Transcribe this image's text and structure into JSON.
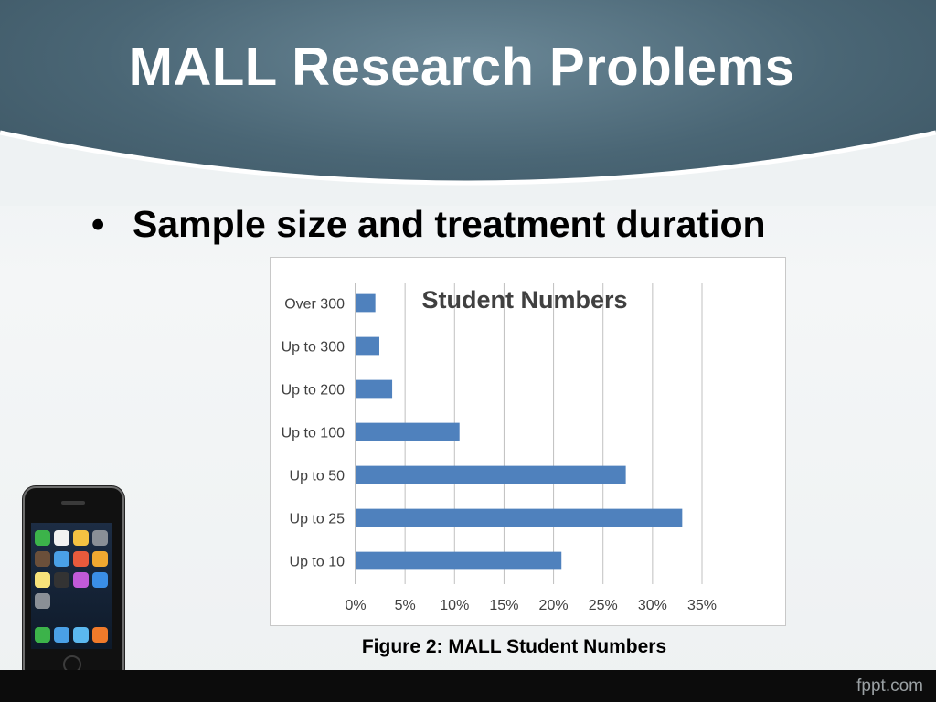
{
  "slide": {
    "title": "MALL Research Problems",
    "bullet": "Sample size and treatment duration",
    "caption": "Figure 2: MALL Student Numbers",
    "footer_brand": "fppt.com"
  },
  "colors": {
    "header": "#4a6675",
    "bar": "#4f81bd",
    "gridline": "#c0c0c0"
  },
  "chart_data": {
    "type": "bar",
    "orientation": "horizontal",
    "title": "Student Numbers",
    "categories": [
      "Over 300",
      "Up to 300",
      "Up to 200",
      "Up to 100",
      "Up to 50",
      "Up to 25",
      "Up to 10"
    ],
    "values": [
      2,
      2.4,
      3.7,
      10.5,
      27.3,
      33,
      20.8
    ],
    "value_unit": "%",
    "xlim": [
      0,
      35
    ],
    "xticks": [
      "0%",
      "5%",
      "10%",
      "15%",
      "20%",
      "25%",
      "30%",
      "35%"
    ],
    "grid": "vertical",
    "legend": "none"
  }
}
